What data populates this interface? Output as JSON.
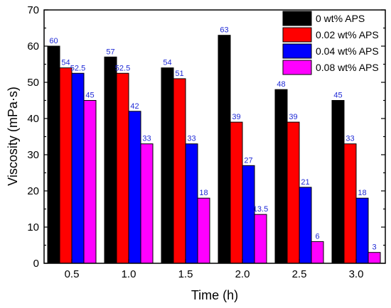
{
  "chart_data": {
    "type": "bar",
    "title": "",
    "xlabel": "Time (h)",
    "ylabel": "Viscosity (mPa·s)",
    "ylim": [
      0,
      70
    ],
    "yticks": [
      "0",
      "10",
      "20",
      "30",
      "40",
      "50",
      "60",
      "70"
    ],
    "categories": [
      "0.5",
      "1.0",
      "1.5",
      "2.0",
      "2.5",
      "3.0"
    ],
    "series": [
      {
        "name": "0 wt% APS",
        "color": "#000000",
        "values": [
          60,
          57,
          54,
          63,
          48,
          45
        ],
        "labels": [
          "60",
          "57",
          "54",
          "63",
          "48",
          "45"
        ]
      },
      {
        "name": "0.02 wt% APS",
        "color": "#ff0000",
        "values": [
          54,
          52.5,
          51,
          39,
          39,
          33
        ],
        "labels": [
          "54",
          "52.5",
          "51",
          "39",
          "39",
          "33"
        ]
      },
      {
        "name": "0.04 wt% APS",
        "color": "#0000ff",
        "values": [
          52.5,
          42,
          33,
          27,
          21,
          18
        ],
        "labels": [
          "52.5",
          "42",
          "33",
          "27",
          "21",
          "18"
        ]
      },
      {
        "name": "0.08 wt% APS",
        "color": "#ff00ff",
        "values": [
          45,
          33,
          18,
          13.5,
          6,
          3
        ],
        "labels": [
          "45",
          "33",
          "18",
          "13.5",
          "6",
          "3"
        ]
      }
    ],
    "legend": "top-right",
    "grid": false
  }
}
